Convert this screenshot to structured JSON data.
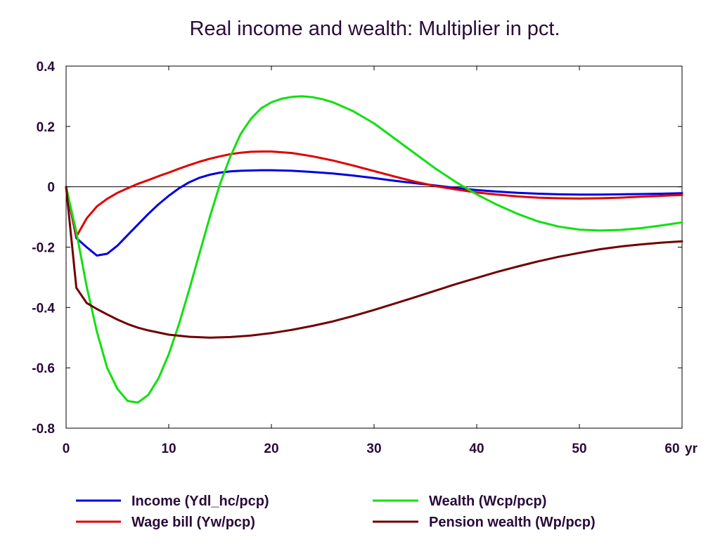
{
  "chart_data": {
    "type": "line",
    "title": "Real income and wealth: Multiplier in pct.",
    "xlabel": "",
    "ylabel": "",
    "x_unit_label": "yr",
    "xlim": [
      0,
      60
    ],
    "ylim": [
      -0.8,
      0.4
    ],
    "x_ticks": [
      0,
      10,
      20,
      30,
      40,
      50,
      60
    ],
    "x_tick_labels": [
      "0",
      "10",
      "20",
      "30",
      "40",
      "50",
      "60"
    ],
    "y_ticks": [
      0.4,
      0.2,
      0,
      -0.2,
      -0.4,
      -0.6,
      -0.8
    ],
    "y_tick_labels": [
      "0.4",
      "0.2",
      "0",
      "-0.2",
      "-0.4",
      "-0.6",
      "-0.8"
    ],
    "grid": false,
    "zero_line": true,
    "legend_position": "bottom",
    "series": [
      {
        "name": "Income (Ydl_hc/pcp)",
        "color": "#0000e0",
        "x": [
          0,
          1,
          2,
          3,
          4,
          5,
          6,
          7,
          8,
          9,
          10,
          11,
          12,
          13,
          14,
          15,
          16,
          17,
          18,
          19,
          20,
          22,
          24,
          26,
          28,
          30,
          32,
          34,
          36,
          38,
          40,
          42,
          44,
          46,
          48,
          50,
          52,
          54,
          56,
          58,
          60
        ],
        "y": [
          0,
          -0.17,
          -0.2,
          -0.228,
          -0.222,
          -0.195,
          -0.16,
          -0.125,
          -0.09,
          -0.058,
          -0.03,
          -0.005,
          0.015,
          0.03,
          0.04,
          0.047,
          0.051,
          0.053,
          0.054,
          0.055,
          0.055,
          0.053,
          0.049,
          0.044,
          0.037,
          0.029,
          0.02,
          0.012,
          0.004,
          -0.004,
          -0.011,
          -0.016,
          -0.02,
          -0.023,
          -0.025,
          -0.026,
          -0.026,
          -0.025,
          -0.024,
          -0.023,
          -0.021
        ]
      },
      {
        "name": "Wage bill (Yw/pcp)",
        "color": "#e00000",
        "x": [
          0,
          1,
          2,
          3,
          4,
          5,
          6,
          7,
          8,
          9,
          10,
          11,
          12,
          13,
          14,
          15,
          16,
          17,
          18,
          19,
          20,
          22,
          24,
          26,
          28,
          30,
          32,
          34,
          36,
          38,
          40,
          42,
          44,
          46,
          48,
          50,
          52,
          54,
          56,
          58,
          60
        ],
        "y": [
          0,
          -0.165,
          -0.105,
          -0.065,
          -0.04,
          -0.02,
          -0.005,
          0.01,
          0.022,
          0.035,
          0.047,
          0.06,
          0.072,
          0.083,
          0.093,
          0.101,
          0.108,
          0.113,
          0.116,
          0.117,
          0.117,
          0.112,
          0.101,
          0.087,
          0.07,
          0.052,
          0.034,
          0.017,
          0.002,
          -0.009,
          -0.019,
          -0.026,
          -0.032,
          -0.036,
          -0.038,
          -0.039,
          -0.038,
          -0.036,
          -0.033,
          -0.03,
          -0.027
        ]
      },
      {
        "name": "Wealth (Wcp/pcp)",
        "color": "#10e010",
        "x": [
          0,
          1,
          2,
          3,
          4,
          5,
          6,
          7,
          8,
          9,
          10,
          11,
          12,
          13,
          14,
          15,
          16,
          17,
          18,
          19,
          20,
          21,
          22,
          23,
          24,
          25,
          26,
          28,
          30,
          32,
          34,
          36,
          38,
          40,
          42,
          44,
          46,
          48,
          50,
          52,
          54,
          56,
          58,
          60
        ],
        "y": [
          0,
          -0.15,
          -0.33,
          -0.48,
          -0.6,
          -0.67,
          -0.71,
          -0.715,
          -0.69,
          -0.635,
          -0.555,
          -0.455,
          -0.34,
          -0.22,
          -0.1,
          0.01,
          0.1,
          0.175,
          0.225,
          0.26,
          0.28,
          0.292,
          0.298,
          0.3,
          0.297,
          0.29,
          0.28,
          0.25,
          0.21,
          0.16,
          0.11,
          0.06,
          0.015,
          -0.025,
          -0.06,
          -0.09,
          -0.115,
          -0.132,
          -0.142,
          -0.145,
          -0.143,
          -0.137,
          -0.128,
          -0.118
        ]
      },
      {
        "name": "Pension wealth (Wp/pcp)",
        "color": "#700000",
        "x": [
          0,
          1,
          2,
          3,
          4,
          5,
          6,
          7,
          8,
          10,
          12,
          14,
          16,
          18,
          20,
          22,
          24,
          26,
          28,
          30,
          32,
          34,
          36,
          38,
          40,
          42,
          44,
          46,
          48,
          50,
          52,
          54,
          56,
          58,
          60
        ],
        "y": [
          0,
          -0.335,
          -0.385,
          -0.405,
          -0.423,
          -0.44,
          -0.455,
          -0.467,
          -0.476,
          -0.49,
          -0.497,
          -0.5,
          -0.498,
          -0.493,
          -0.485,
          -0.474,
          -0.461,
          -0.446,
          -0.428,
          -0.408,
          -0.387,
          -0.366,
          -0.344,
          -0.322,
          -0.302,
          -0.282,
          -0.264,
          -0.247,
          -0.232,
          -0.219,
          -0.207,
          -0.198,
          -0.191,
          -0.185,
          -0.181
        ]
      }
    ]
  }
}
